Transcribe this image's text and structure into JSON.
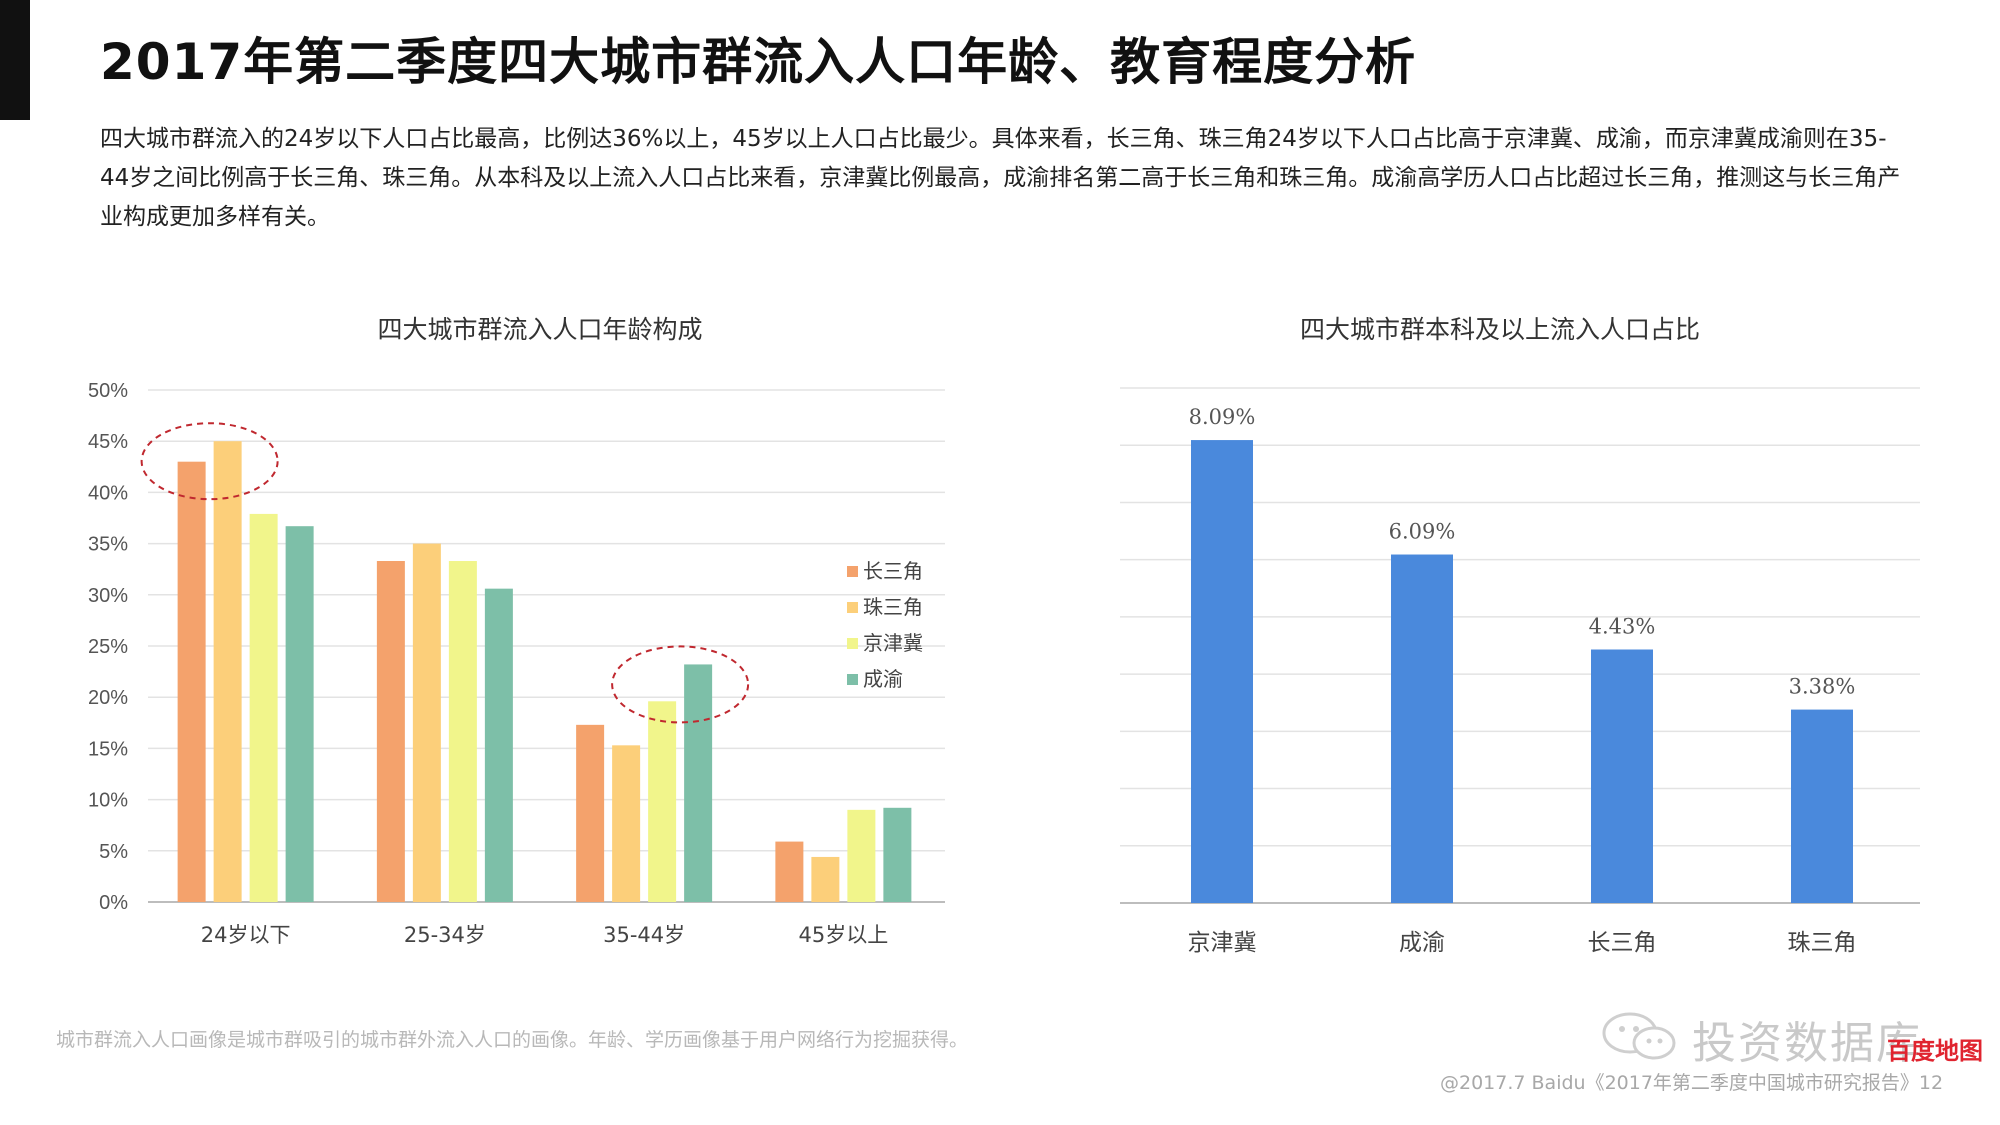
{
  "page": {
    "title": "2017年第二季度四大城市群流入人口年龄、教育程度分析",
    "intro": "四大城市群流入的24岁以下人口占比最高，比例达36%以上，45岁以上人口占比最少。具体来看，长三角、珠三角24岁以下人口占比高于京津冀、成渝，而京津冀成渝则在35-44岁之间比例高于长三角、珠三角。从本科及以上流入人口占比来看，京津冀比例最高，成渝排名第二高于长三角和珠三角。成渝高学历人口占比超过长三角，推测这与长三角产业构成更加多样有关。",
    "footnote": "城市群流入人口画像是城市群吸引的城市群外流入人口的画像。年龄、学历画像基于用户网络行为挖掘获得。",
    "copyright": "@2017.7 Baidu《2017年第二季度中国城市研究报告》12",
    "watermark": "投资数据库",
    "watermark_brand": "百度地图"
  },
  "chart_data": [
    {
      "type": "bar",
      "title": "四大城市群流入人口年龄构成",
      "categories": [
        "24岁以下",
        "25-34岁",
        "35-44岁",
        "45岁以上"
      ],
      "series": [
        {
          "name": "长三角",
          "color": "#f4a26c",
          "values": [
            43.0,
            33.3,
            17.3,
            5.9
          ]
        },
        {
          "name": "珠三角",
          "color": "#fccf7a",
          "values": [
            45.0,
            35.0,
            15.3,
            4.4
          ]
        },
        {
          "name": "京津冀",
          "color": "#f1f58b",
          "values": [
            37.9,
            33.3,
            19.6,
            9.0
          ]
        },
        {
          "name": "成渝",
          "color": "#7dbfa8",
          "values": [
            36.7,
            30.6,
            23.2,
            9.2
          ]
        }
      ],
      "ylim": [
        0,
        50
      ],
      "yticks": [
        "0%",
        "5%",
        "10%",
        "15%",
        "20%",
        "25%",
        "30%",
        "35%",
        "40%",
        "45%",
        "50%"
      ],
      "grid": true,
      "legend": "right",
      "highlights": [
        "24岁以下 长三角/珠三角",
        "35-44岁 京津冀/成渝"
      ]
    },
    {
      "type": "bar",
      "title": "四大城市群本科及以上流入人口占比",
      "categories": [
        "京津冀",
        "成渝",
        "长三角",
        "珠三角"
      ],
      "values": [
        8.09,
        6.09,
        4.43,
        3.38
      ],
      "data_labels": [
        "8.09%",
        "6.09%",
        "4.43%",
        "3.38%"
      ],
      "color": "#4a89dc",
      "ylim": [
        0,
        9
      ],
      "grid": true
    }
  ]
}
